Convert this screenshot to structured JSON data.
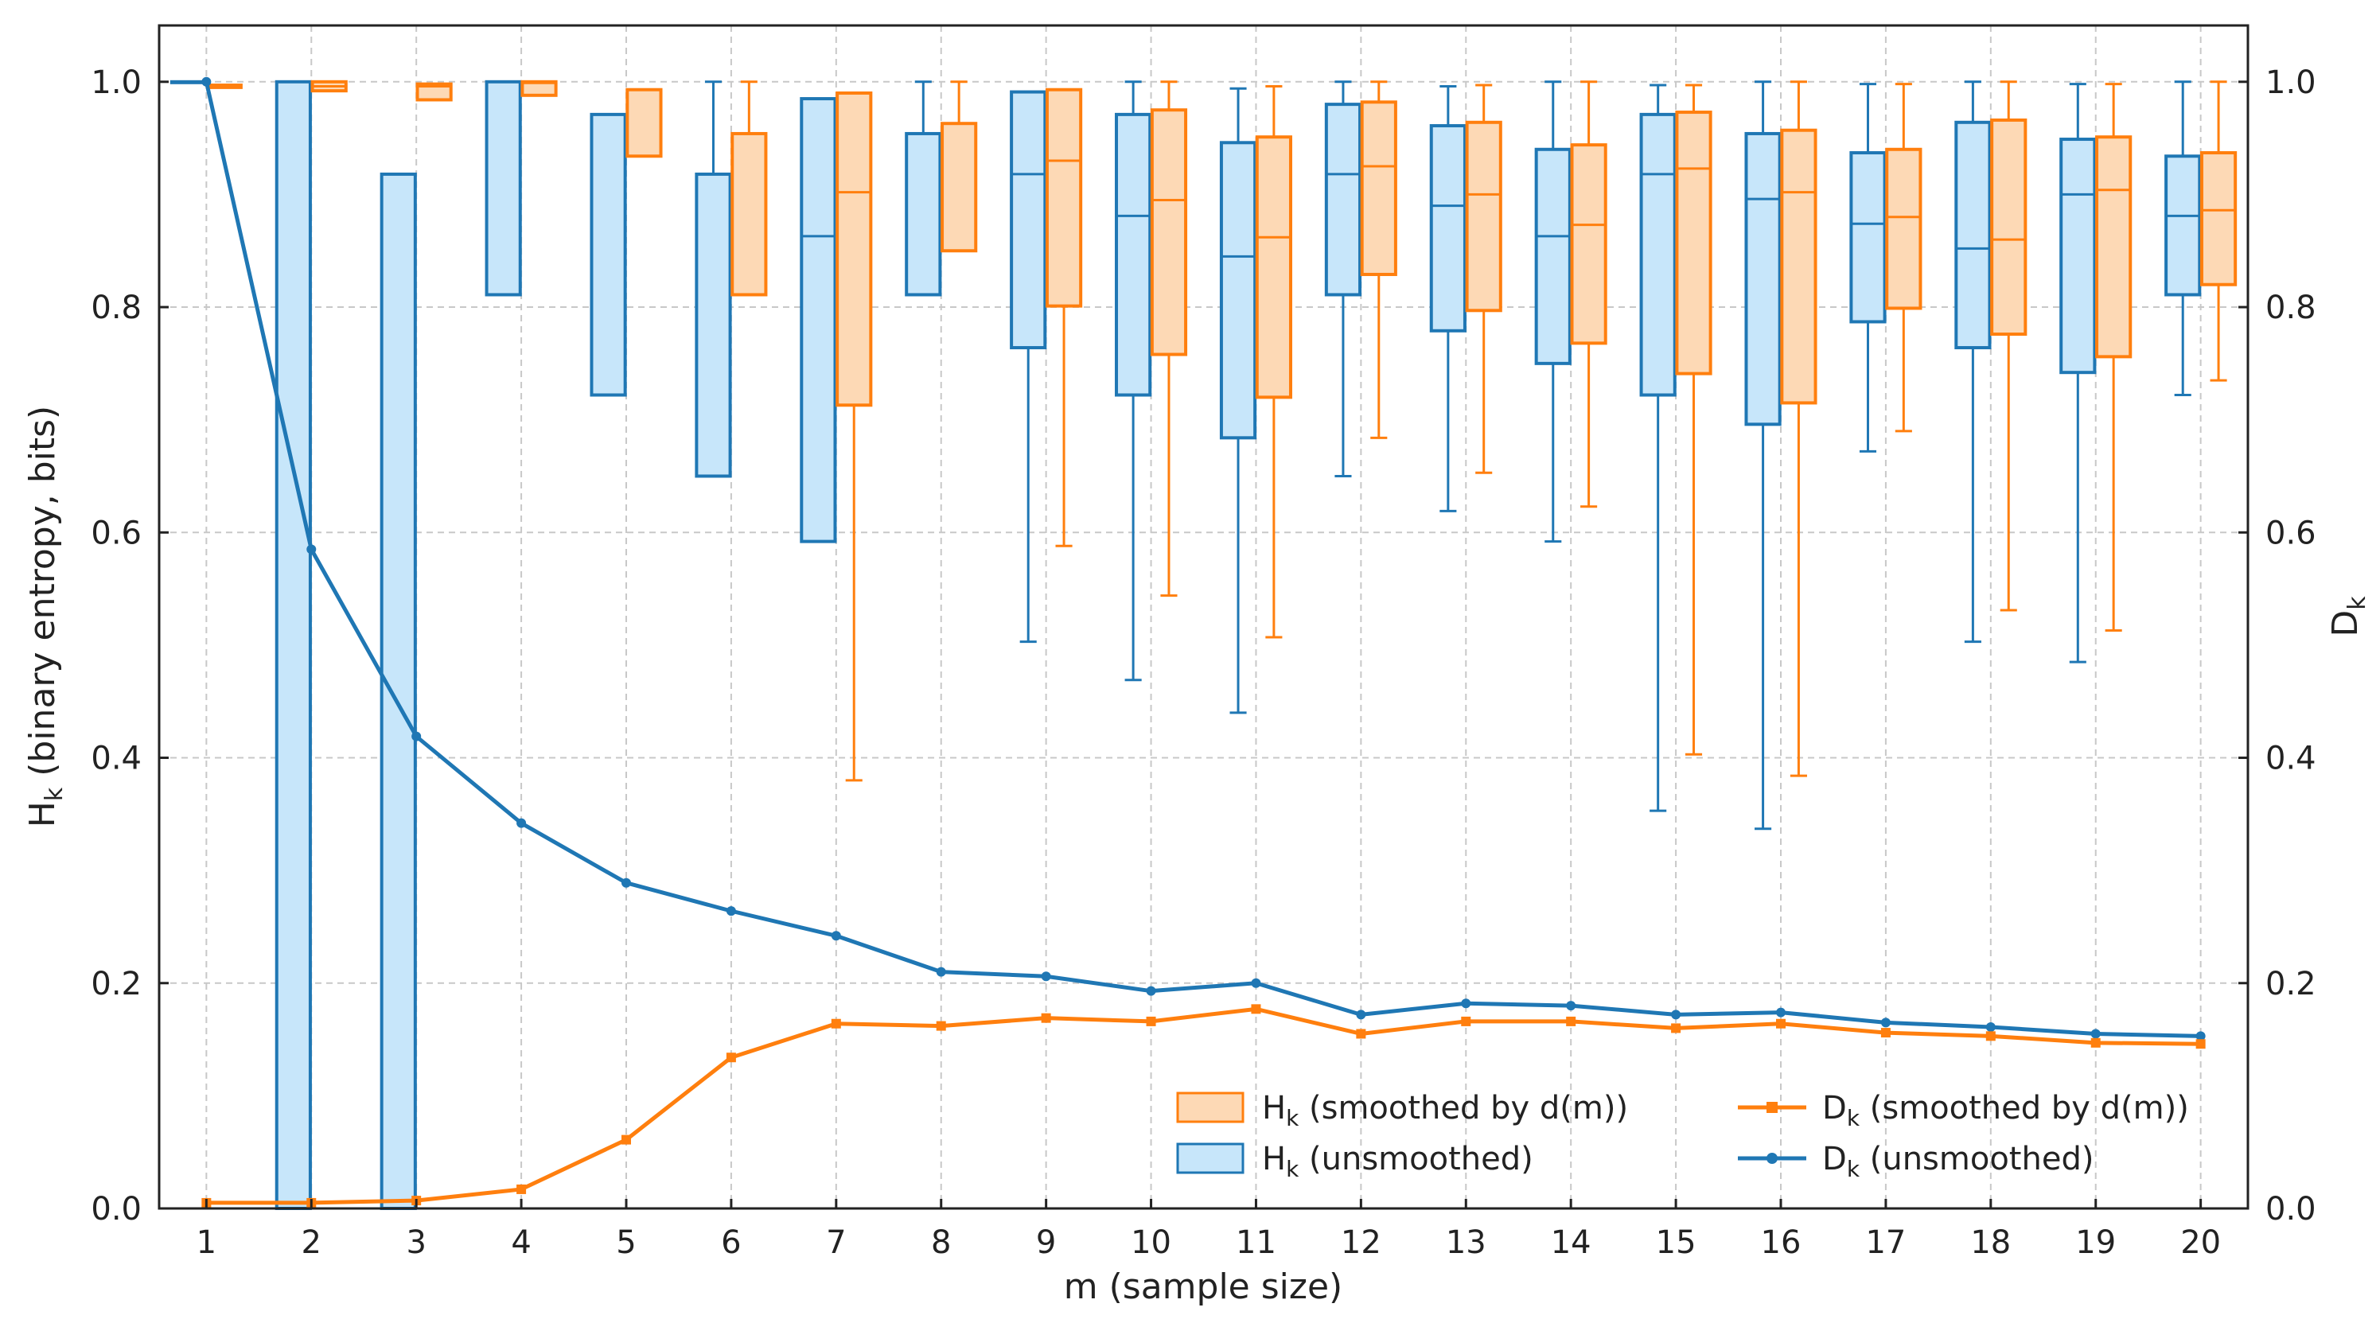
{
  "chart_data": {
    "type": "box+line",
    "x": [
      1,
      2,
      3,
      4,
      5,
      6,
      7,
      8,
      9,
      10,
      11,
      12,
      13,
      14,
      15,
      16,
      17,
      18,
      19,
      20
    ],
    "xlabel": "m (sample size)",
    "ylabel_left": "H",
    "ylabel_left_sub": "k",
    "ylabel_left_suffix": " (binary entropy, bits)",
    "ylabel_right": "D",
    "ylabel_right_sub": "k",
    "ylim": [
      0,
      1.05
    ],
    "yticks": [
      "0.0",
      "0.2",
      "0.4",
      "0.6",
      "0.8",
      "1.0"
    ],
    "ytick_values": [
      0,
      0.2,
      0.4,
      0.6,
      0.8,
      1.0
    ],
    "grid": true,
    "legend_position": "lower-right",
    "colors": {
      "unsmoothed_stroke": "#1f77b4",
      "unsmoothed_fill": "#c7e6fa",
      "smoothed_stroke": "#ff7f0e",
      "smoothed_fill": "#fdd9b5",
      "line_unsmoothed": "#1f77b4",
      "line_smoothed": "#ff7f0e"
    },
    "box_series": [
      {
        "name": "H",
        "sub": "k",
        "suffix": " (unsmoothed)",
        "boxes": [
          {
            "m": 1,
            "whislo": 1.0,
            "q1": 1.0,
            "med": 1.0,
            "q3": 1.0,
            "whishi": 1.0
          },
          {
            "m": 2,
            "whislo": 0.0,
            "q1": 0.0,
            "med": 1.0,
            "q3": 1.0,
            "whishi": 1.0
          },
          {
            "m": 3,
            "whislo": 0.0,
            "q1": 0.0,
            "med": 0.0,
            "q3": 0.918,
            "whishi": 0.918
          },
          {
            "m": 4,
            "whislo": 0.811,
            "q1": 0.811,
            "med": 1.0,
            "q3": 1.0,
            "whishi": 1.0
          },
          {
            "m": 5,
            "whislo": 0.722,
            "q1": 0.722,
            "med": 0.971,
            "q3": 0.971,
            "whishi": 0.971
          },
          {
            "m": 6,
            "whislo": 0.65,
            "q1": 0.65,
            "med": 0.918,
            "q3": 0.918,
            "whishi": 1.0
          },
          {
            "m": 7,
            "whislo": 0.592,
            "q1": 0.592,
            "med": 0.863,
            "q3": 0.985,
            "whishi": 0.985
          },
          {
            "m": 8,
            "whislo": 0.811,
            "q1": 0.811,
            "med": 0.954,
            "q3": 0.954,
            "whishi": 1.0
          },
          {
            "m": 9,
            "whislo": 0.503,
            "q1": 0.764,
            "med": 0.918,
            "q3": 0.991,
            "whishi": 0.991
          },
          {
            "m": 10,
            "whislo": 0.469,
            "q1": 0.722,
            "med": 0.881,
            "q3": 0.971,
            "whishi": 1.0
          },
          {
            "m": 11,
            "whislo": 0.44,
            "q1": 0.684,
            "med": 0.845,
            "q3": 0.946,
            "whishi": 0.994
          },
          {
            "m": 12,
            "whislo": 0.65,
            "q1": 0.811,
            "med": 0.918,
            "q3": 0.98,
            "whishi": 1.0
          },
          {
            "m": 13,
            "whislo": 0.619,
            "q1": 0.779,
            "med": 0.89,
            "q3": 0.961,
            "whishi": 0.996
          },
          {
            "m": 14,
            "whislo": 0.592,
            "q1": 0.75,
            "med": 0.863,
            "q3": 0.94,
            "whishi": 1.0
          },
          {
            "m": 15,
            "whislo": 0.353,
            "q1": 0.722,
            "med": 0.918,
            "q3": 0.971,
            "whishi": 0.997
          },
          {
            "m": 16,
            "whislo": 0.337,
            "q1": 0.696,
            "med": 0.896,
            "q3": 0.954,
            "whishi": 1.0
          },
          {
            "m": 17,
            "whislo": 0.672,
            "q1": 0.787,
            "med": 0.874,
            "q3": 0.937,
            "whishi": 0.998
          },
          {
            "m": 18,
            "whislo": 0.503,
            "q1": 0.764,
            "med": 0.852,
            "q3": 0.964,
            "whishi": 1.0
          },
          {
            "m": 19,
            "whislo": 0.485,
            "q1": 0.742,
            "med": 0.9,
            "q3": 0.949,
            "whishi": 0.998
          },
          {
            "m": 20,
            "whislo": 0.722,
            "q1": 0.811,
            "med": 0.881,
            "q3": 0.934,
            "whishi": 1.0
          }
        ]
      },
      {
        "name": "H",
        "sub": "k",
        "suffix": " (smoothed by d(m))",
        "boxes": [
          {
            "m": 1,
            "whislo": 0.995,
            "q1": 0.995,
            "med": 0.995,
            "q3": 0.997,
            "whishi": 0.997
          },
          {
            "m": 2,
            "whislo": 0.992,
            "q1": 0.992,
            "med": 0.996,
            "q3": 1.0,
            "whishi": 1.0
          },
          {
            "m": 3,
            "whislo": 0.984,
            "q1": 0.984,
            "med": 0.996,
            "q3": 0.998,
            "whishi": 0.998
          },
          {
            "m": 4,
            "whislo": 0.988,
            "q1": 0.988,
            "med": 0.999,
            "q3": 1.0,
            "whishi": 1.0
          },
          {
            "m": 5,
            "whislo": 0.934,
            "q1": 0.934,
            "med": 0.993,
            "q3": 0.993,
            "whishi": 0.993
          },
          {
            "m": 6,
            "whislo": 0.811,
            "q1": 0.811,
            "med": 0.954,
            "q3": 0.954,
            "whishi": 1.0
          },
          {
            "m": 7,
            "whislo": 0.38,
            "q1": 0.713,
            "med": 0.902,
            "q3": 0.99,
            "whishi": 0.99
          },
          {
            "m": 8,
            "whislo": 0.85,
            "q1": 0.85,
            "med": 0.963,
            "q3": 0.963,
            "whishi": 1.0
          },
          {
            "m": 9,
            "whislo": 0.588,
            "q1": 0.801,
            "med": 0.93,
            "q3": 0.993,
            "whishi": 0.993
          },
          {
            "m": 10,
            "whislo": 0.544,
            "q1": 0.758,
            "med": 0.895,
            "q3": 0.975,
            "whishi": 1.0
          },
          {
            "m": 11,
            "whislo": 0.507,
            "q1": 0.72,
            "med": 0.862,
            "q3": 0.951,
            "whishi": 0.996
          },
          {
            "m": 12,
            "whislo": 0.684,
            "q1": 0.829,
            "med": 0.925,
            "q3": 0.982,
            "whishi": 1.0
          },
          {
            "m": 13,
            "whislo": 0.653,
            "q1": 0.797,
            "med": 0.9,
            "q3": 0.964,
            "whishi": 0.997
          },
          {
            "m": 14,
            "whislo": 0.623,
            "q1": 0.768,
            "med": 0.873,
            "q3": 0.944,
            "whishi": 1.0
          },
          {
            "m": 15,
            "whislo": 0.403,
            "q1": 0.741,
            "med": 0.923,
            "q3": 0.973,
            "whishi": 0.997
          },
          {
            "m": 16,
            "whislo": 0.384,
            "q1": 0.715,
            "med": 0.902,
            "q3": 0.957,
            "whishi": 1.0
          },
          {
            "m": 17,
            "whislo": 0.69,
            "q1": 0.799,
            "med": 0.88,
            "q3": 0.94,
            "whishi": 0.998
          },
          {
            "m": 18,
            "whislo": 0.531,
            "q1": 0.776,
            "med": 0.86,
            "q3": 0.966,
            "whishi": 1.0
          },
          {
            "m": 19,
            "whislo": 0.513,
            "q1": 0.756,
            "med": 0.904,
            "q3": 0.951,
            "whishi": 0.998
          },
          {
            "m": 20,
            "whislo": 0.735,
            "q1": 0.82,
            "med": 0.886,
            "q3": 0.937,
            "whishi": 1.0
          }
        ]
      }
    ],
    "line_series": [
      {
        "name": "D",
        "sub": "k",
        "suffix": " (unsmoothed)",
        "values": [
          1.0,
          0.585,
          0.419,
          0.342,
          0.289,
          0.264,
          0.242,
          0.21,
          0.206,
          0.193,
          0.2,
          0.172,
          0.182,
          0.18,
          0.172,
          0.174,
          0.165,
          0.161,
          0.155,
          0.153
        ]
      },
      {
        "name": "D",
        "sub": "k",
        "suffix": " (smoothed by d(m))",
        "values": [
          0.005,
          0.005,
          0.007,
          0.017,
          0.061,
          0.134,
          0.164,
          0.162,
          0.169,
          0.166,
          0.177,
          0.155,
          0.166,
          0.166,
          0.16,
          0.164,
          0.156,
          0.153,
          0.147,
          0.146
        ]
      }
    ]
  }
}
